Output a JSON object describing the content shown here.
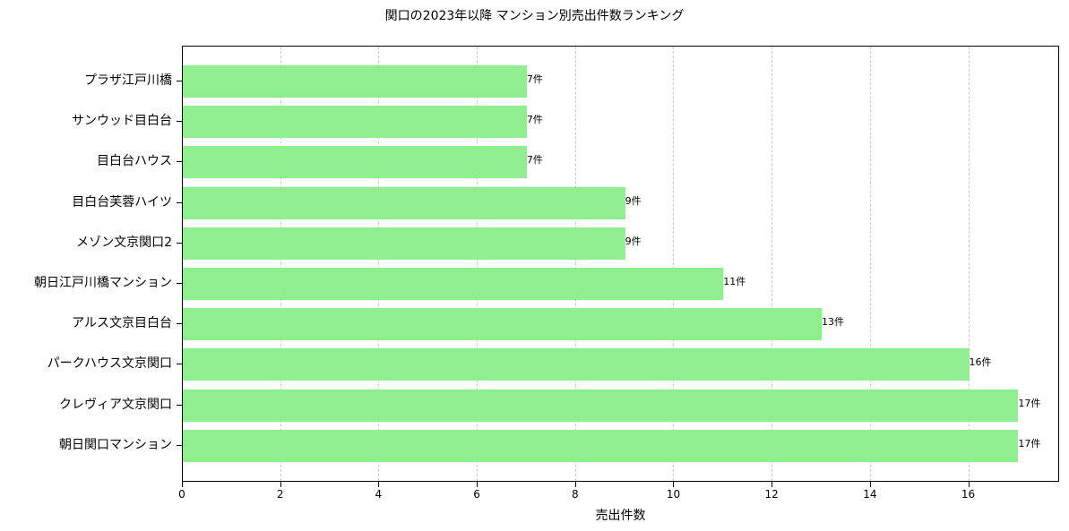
{
  "chart_data": {
    "type": "bar",
    "orientation": "horizontal",
    "title": "関口の2023年以降 マンション別売出件数ランキング",
    "xlabel": "売出件数",
    "ylabel": "",
    "categories": [
      "プラザ江戸川橋",
      "サンウッド目白台",
      "目白台ハウス",
      "目白台芙蓉ハイツ",
      "メゾン文京関口2",
      "朝日江戸川橋マンション",
      "アルス文京目白台",
      "パークハウス文京関口",
      "クレヴィア文京関口",
      "朝日関口マンション"
    ],
    "values": [
      7,
      7,
      7,
      9,
      9,
      11,
      13,
      16,
      17,
      17
    ],
    "data_labels": [
      "7件",
      "7件",
      "7件",
      "9件",
      "9件",
      "11件",
      "13件",
      "16件",
      "17件",
      "17件"
    ],
    "xlim": [
      0,
      17.85
    ],
    "xticks": [
      0,
      2,
      4,
      6,
      8,
      10,
      12,
      14,
      16
    ],
    "grid": {
      "x": true,
      "y": false,
      "style": "dashed"
    },
    "bar_color": "#90ee90",
    "legend": null
  }
}
